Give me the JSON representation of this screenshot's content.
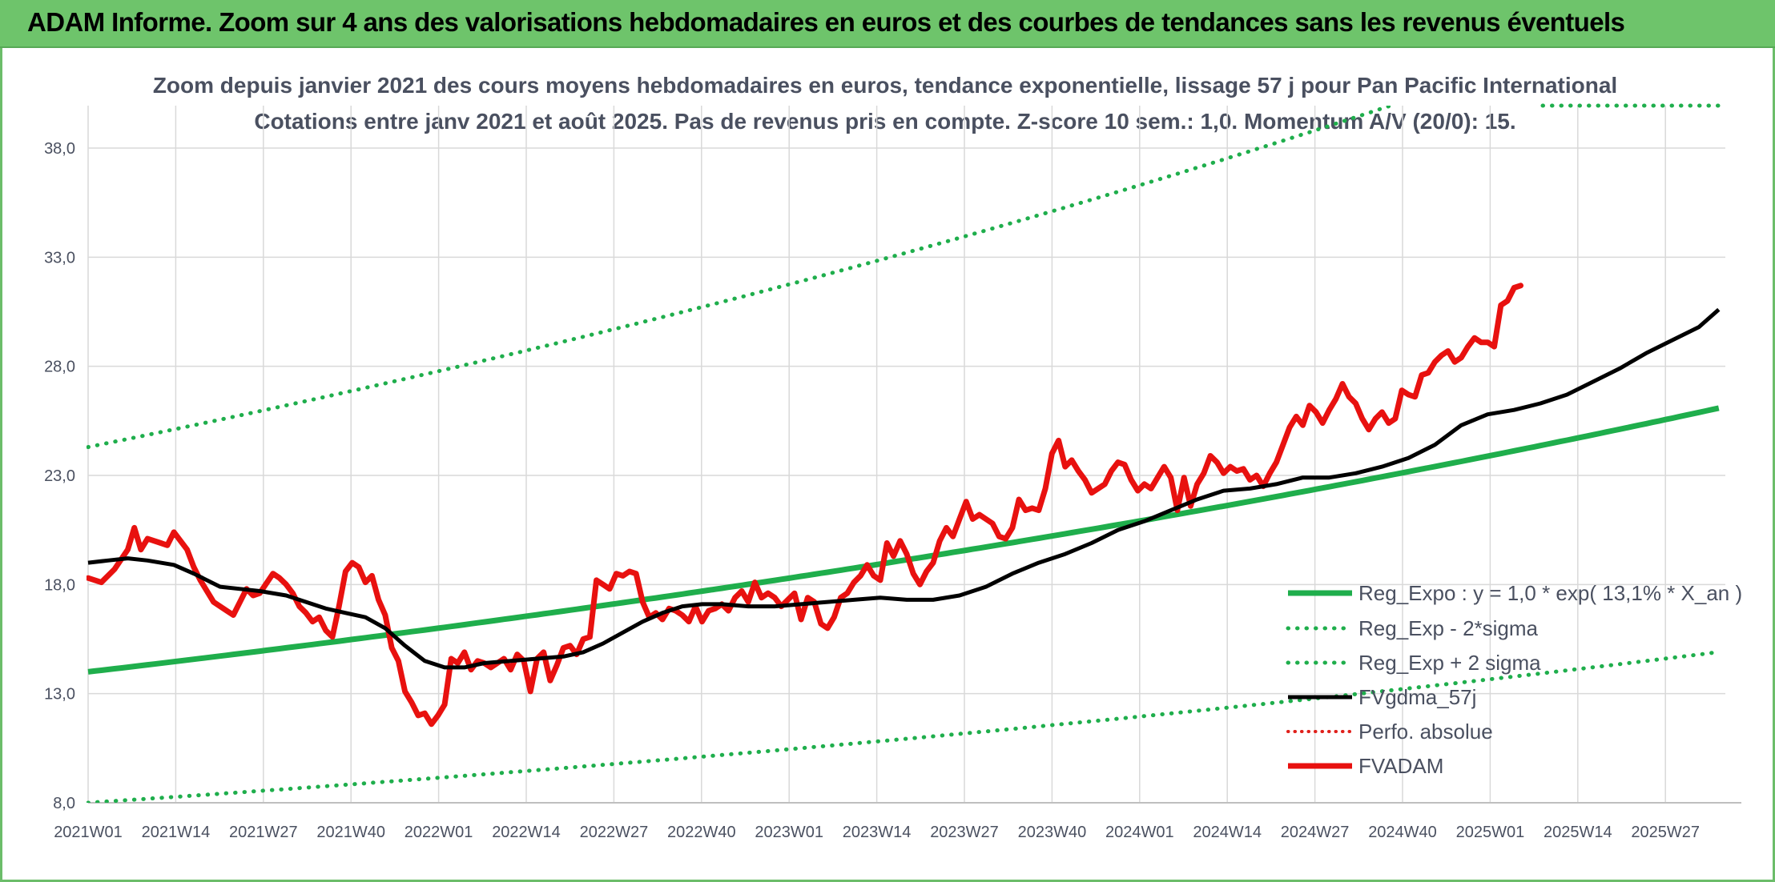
{
  "banner": {
    "title": "ADAM Informe. Zoom sur 4 ans des valorisations hebdomadaires en euros et des courbes de tendances sans les revenus éventuels"
  },
  "colors": {
    "banner_bg": "#6ec46b",
    "regression": "#1fae4c",
    "bands": "#1fae4c",
    "moving_average": "#000000",
    "perfo_absolue": "#e0201b",
    "price": "#e8110f",
    "grid": "#d9d9d9",
    "text": "#4a5060"
  },
  "chart_data": {
    "type": "line",
    "title": "Zoom depuis janvier 2021 des cours moyens hebdomadaires en euros, tendance exponentielle, lissage 57 j pour Pan Pacific International",
    "subtitle": "Cotations entre janv 2021 et août 2025. Pas de revenus pris en compte. Z-score 10 sem.: 1,0. Momentum A/V (20/0): 15.",
    "xlabel": "",
    "ylabel": "",
    "ylim": [
      8.0,
      40.0
    ],
    "y_ticks": [
      "8,0",
      "13,0",
      "18,0",
      "23,0",
      "28,0",
      "33,0",
      "38,0"
    ],
    "y_tick_values": [
      8,
      13,
      18,
      23,
      28,
      33,
      38
    ],
    "x_ticks": [
      "2021W01",
      "2021W14",
      "2021W27",
      "2021W40",
      "2022W01",
      "2022W14",
      "2022W27",
      "2022W40",
      "2023W01",
      "2023W14",
      "2023W27",
      "2023W40",
      "2024W01",
      "2024W14",
      "2024W27",
      "2024W40",
      "2025W01",
      "2025W14",
      "2025W27"
    ],
    "grid": "on",
    "legend_position": "bottom-right",
    "regression": {
      "start": 14.0,
      "growth_rate": 0.131,
      "band_minus_2sigma_start": 8.0,
      "band_plus_2sigma_start": 24.3
    },
    "series": [
      {
        "name": "Reg_Expo : y = 1,0 * exp( 13,1% *  X_an )",
        "style": "solid-thick",
        "color": "#1fae4c"
      },
      {
        "name": "Reg_Exp - 2*sigma",
        "style": "dotted",
        "color": "#1fae4c"
      },
      {
        "name": "Reg_Exp + 2 sigma",
        "style": "dotted",
        "color": "#1fae4c"
      },
      {
        "name": "FVgdma_57j",
        "style": "solid",
        "color": "#000000",
        "points": [
          [
            0,
            19.0
          ],
          [
            3,
            19.1
          ],
          [
            6,
            19.2
          ],
          [
            9,
            19.1
          ],
          [
            13,
            18.9
          ],
          [
            16,
            18.5
          ],
          [
            20,
            17.9
          ],
          [
            23,
            17.8
          ],
          [
            26,
            17.7
          ],
          [
            30,
            17.5
          ],
          [
            33,
            17.2
          ],
          [
            36,
            16.9
          ],
          [
            39,
            16.7
          ],
          [
            42,
            16.5
          ],
          [
            45,
            16.0
          ],
          [
            48,
            15.2
          ],
          [
            51,
            14.5
          ],
          [
            54,
            14.2
          ],
          [
            57,
            14.2
          ],
          [
            60,
            14.4
          ],
          [
            64,
            14.5
          ],
          [
            68,
            14.6
          ],
          [
            72,
            14.7
          ],
          [
            75,
            14.9
          ],
          [
            78,
            15.3
          ],
          [
            81,
            15.8
          ],
          [
            84,
            16.3
          ],
          [
            87,
            16.7
          ],
          [
            90,
            17.0
          ],
          [
            93,
            17.1
          ],
          [
            96,
            17.1
          ],
          [
            100,
            17.0
          ],
          [
            104,
            17.0
          ],
          [
            108,
            17.1
          ],
          [
            112,
            17.2
          ],
          [
            116,
            17.3
          ],
          [
            120,
            17.4
          ],
          [
            124,
            17.3
          ],
          [
            128,
            17.3
          ],
          [
            132,
            17.5
          ],
          [
            136,
            17.9
          ],
          [
            140,
            18.5
          ],
          [
            144,
            19.0
          ],
          [
            148,
            19.4
          ],
          [
            152,
            19.9
          ],
          [
            156,
            20.5
          ],
          [
            160,
            20.9
          ],
          [
            164,
            21.4
          ],
          [
            168,
            21.9
          ],
          [
            172,
            22.3
          ],
          [
            176,
            22.4
          ],
          [
            180,
            22.6
          ],
          [
            184,
            22.9
          ],
          [
            188,
            22.9
          ],
          [
            192,
            23.1
          ],
          [
            196,
            23.4
          ],
          [
            200,
            23.8
          ],
          [
            204,
            24.4
          ],
          [
            208,
            25.3
          ],
          [
            212,
            25.8
          ],
          [
            216,
            26.0
          ],
          [
            220,
            26.3
          ],
          [
            224,
            26.7
          ],
          [
            228,
            27.3
          ],
          [
            232,
            27.9
          ],
          [
            236,
            28.6
          ],
          [
            240,
            29.2
          ],
          [
            244,
            29.8
          ],
          [
            247,
            30.6
          ]
        ]
      },
      {
        "name": "Perfo. absolue",
        "style": "dotted",
        "color": "#e0201b",
        "points": []
      },
      {
        "name": "FVADAM",
        "style": "solid-thick",
        "color": "#e8110f",
        "points": [
          [
            0,
            18.3
          ],
          [
            2,
            18.1
          ],
          [
            4,
            18.7
          ],
          [
            6,
            19.6
          ],
          [
            7,
            20.6
          ],
          [
            8,
            19.6
          ],
          [
            9,
            20.1
          ],
          [
            11,
            19.9
          ],
          [
            12,
            19.8
          ],
          [
            13,
            20.4
          ],
          [
            15,
            19.6
          ],
          [
            16,
            18.8
          ],
          [
            17,
            18.2
          ],
          [
            19,
            17.2
          ],
          [
            21,
            16.8
          ],
          [
            22,
            16.6
          ],
          [
            24,
            17.8
          ],
          [
            25,
            17.5
          ],
          [
            26,
            17.6
          ],
          [
            28,
            18.5
          ],
          [
            29,
            18.3
          ],
          [
            30,
            18.0
          ],
          [
            31,
            17.6
          ],
          [
            32,
            17.0
          ],
          [
            33,
            16.7
          ],
          [
            34,
            16.3
          ],
          [
            35,
            16.5
          ],
          [
            36,
            15.9
          ],
          [
            37,
            15.6
          ],
          [
            38,
            17.0
          ],
          [
            39,
            18.6
          ],
          [
            40,
            19.0
          ],
          [
            41,
            18.8
          ],
          [
            42,
            18.1
          ],
          [
            43,
            18.4
          ],
          [
            44,
            17.3
          ],
          [
            45,
            16.6
          ],
          [
            46,
            15.1
          ],
          [
            47,
            14.5
          ],
          [
            48,
            13.1
          ],
          [
            49,
            12.6
          ],
          [
            50,
            12.0
          ],
          [
            51,
            12.1
          ],
          [
            52,
            11.6
          ],
          [
            53,
            12.0
          ],
          [
            54,
            12.5
          ],
          [
            55,
            14.6
          ],
          [
            56,
            14.4
          ],
          [
            57,
            14.9
          ],
          [
            58,
            14.1
          ],
          [
            59,
            14.5
          ],
          [
            60,
            14.4
          ],
          [
            61,
            14.2
          ],
          [
            62,
            14.4
          ],
          [
            63,
            14.6
          ],
          [
            64,
            14.1
          ],
          [
            65,
            14.8
          ],
          [
            66,
            14.5
          ],
          [
            67,
            13.1
          ],
          [
            68,
            14.6
          ],
          [
            69,
            14.9
          ],
          [
            70,
            13.6
          ],
          [
            71,
            14.3
          ],
          [
            72,
            15.1
          ],
          [
            73,
            15.2
          ],
          [
            74,
            14.8
          ],
          [
            75,
            15.5
          ],
          [
            76,
            15.6
          ],
          [
            77,
            18.2
          ],
          [
            78,
            18.0
          ],
          [
            79,
            17.8
          ],
          [
            80,
            18.5
          ],
          [
            81,
            18.4
          ],
          [
            82,
            18.6
          ],
          [
            83,
            18.5
          ],
          [
            84,
            17.2
          ],
          [
            85,
            16.5
          ],
          [
            86,
            16.7
          ],
          [
            87,
            16.4
          ],
          [
            88,
            16.9
          ],
          [
            89,
            16.8
          ],
          [
            90,
            16.6
          ],
          [
            91,
            16.3
          ],
          [
            92,
            17.0
          ],
          [
            93,
            16.3
          ],
          [
            94,
            16.8
          ],
          [
            95,
            16.9
          ],
          [
            96,
            17.1
          ],
          [
            97,
            16.8
          ],
          [
            98,
            17.4
          ],
          [
            99,
            17.7
          ],
          [
            100,
            17.2
          ],
          [
            101,
            18.1
          ],
          [
            102,
            17.4
          ],
          [
            103,
            17.6
          ],
          [
            104,
            17.4
          ],
          [
            105,
            17.0
          ],
          [
            106,
            17.3
          ],
          [
            107,
            17.6
          ],
          [
            108,
            16.4
          ],
          [
            109,
            17.4
          ],
          [
            110,
            17.2
          ],
          [
            111,
            16.2
          ],
          [
            112,
            16.0
          ],
          [
            113,
            16.5
          ],
          [
            114,
            17.4
          ],
          [
            115,
            17.6
          ],
          [
            116,
            18.1
          ],
          [
            117,
            18.4
          ],
          [
            118,
            18.9
          ],
          [
            119,
            18.4
          ],
          [
            120,
            18.2
          ],
          [
            121,
            19.9
          ],
          [
            122,
            19.3
          ],
          [
            123,
            20.0
          ],
          [
            124,
            19.4
          ],
          [
            125,
            18.5
          ],
          [
            126,
            18.0
          ],
          [
            127,
            18.6
          ],
          [
            128,
            19.0
          ],
          [
            129,
            20.0
          ],
          [
            130,
            20.6
          ],
          [
            131,
            20.2
          ],
          [
            132,
            21.0
          ],
          [
            133,
            21.8
          ],
          [
            134,
            21.0
          ],
          [
            135,
            21.2
          ],
          [
            136,
            21.0
          ],
          [
            137,
            20.8
          ],
          [
            138,
            20.2
          ],
          [
            139,
            20.1
          ],
          [
            140,
            20.6
          ],
          [
            141,
            21.9
          ],
          [
            142,
            21.4
          ],
          [
            143,
            21.5
          ],
          [
            144,
            21.4
          ],
          [
            145,
            22.4
          ],
          [
            146,
            24.0
          ],
          [
            147,
            24.6
          ],
          [
            148,
            23.4
          ],
          [
            149,
            23.7
          ],
          [
            150,
            23.2
          ],
          [
            151,
            22.8
          ],
          [
            152,
            22.2
          ],
          [
            153,
            22.4
          ],
          [
            154,
            22.6
          ],
          [
            155,
            23.2
          ],
          [
            156,
            23.6
          ],
          [
            157,
            23.5
          ],
          [
            158,
            22.8
          ],
          [
            159,
            22.3
          ],
          [
            160,
            22.6
          ],
          [
            161,
            22.4
          ],
          [
            162,
            22.9
          ],
          [
            163,
            23.4
          ],
          [
            164,
            22.9
          ],
          [
            165,
            21.4
          ],
          [
            166,
            22.9
          ],
          [
            167,
            21.6
          ],
          [
            168,
            22.6
          ],
          [
            169,
            23.1
          ],
          [
            170,
            23.9
          ],
          [
            171,
            23.6
          ],
          [
            172,
            23.1
          ],
          [
            173,
            23.4
          ],
          [
            174,
            23.2
          ],
          [
            175,
            23.3
          ],
          [
            176,
            22.8
          ],
          [
            177,
            23.0
          ],
          [
            178,
            22.5
          ],
          [
            179,
            23.1
          ],
          [
            180,
            23.6
          ],
          [
            181,
            24.4
          ],
          [
            182,
            25.2
          ],
          [
            183,
            25.7
          ],
          [
            184,
            25.3
          ],
          [
            185,
            26.2
          ],
          [
            186,
            25.9
          ],
          [
            187,
            25.4
          ],
          [
            188,
            26.0
          ],
          [
            189,
            26.5
          ],
          [
            190,
            27.2
          ],
          [
            191,
            26.6
          ],
          [
            192,
            26.3
          ],
          [
            193,
            25.6
          ],
          [
            194,
            25.1
          ],
          [
            195,
            25.6
          ],
          [
            196,
            25.9
          ],
          [
            197,
            25.4
          ],
          [
            198,
            25.6
          ],
          [
            199,
            26.9
          ],
          [
            200,
            26.7
          ],
          [
            201,
            26.6
          ],
          [
            202,
            27.6
          ],
          [
            203,
            27.7
          ],
          [
            204,
            28.2
          ],
          [
            205,
            28.5
          ],
          [
            206,
            28.7
          ],
          [
            207,
            28.2
          ],
          [
            208,
            28.4
          ],
          [
            209,
            28.9
          ],
          [
            210,
            29.3
          ],
          [
            211,
            29.1
          ],
          [
            212,
            29.1
          ],
          [
            213,
            28.9
          ],
          [
            214,
            30.8
          ],
          [
            215,
            31.0
          ],
          [
            216,
            31.6
          ],
          [
            217,
            31.7
          ]
        ]
      }
    ]
  }
}
